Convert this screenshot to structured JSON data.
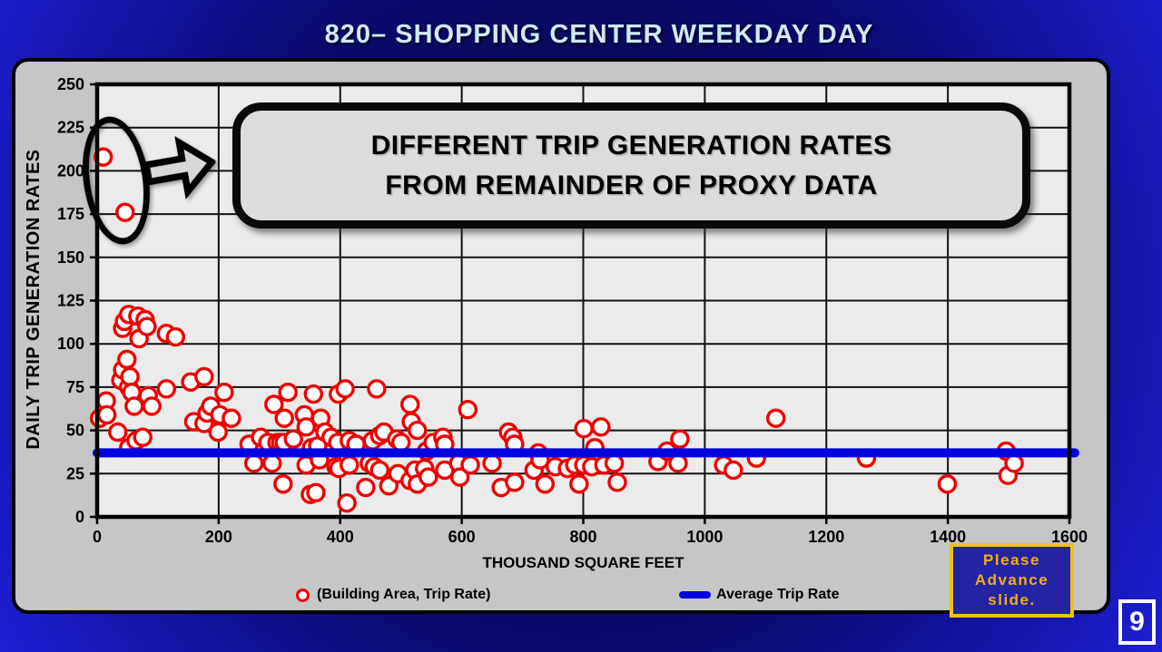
{
  "slide": {
    "title": "820– SHOPPING CENTER WEEKDAY DAY",
    "page_number": "9"
  },
  "callout": {
    "line1": "DIFFERENT TRIP GENERATION RATES",
    "line2": "FROM REMAINDER OF PROXY DATA"
  },
  "advance_box": {
    "line1": "Please",
    "line2": "Advance",
    "line3": "slide."
  },
  "legend": {
    "scatter_label": "(Building Area, Trip Rate)",
    "line_label": "Average Trip Rate"
  },
  "colors": {
    "marker_red": "#ee0000",
    "average_line_blue": "#0000e0",
    "title_text": "#cfeaf8",
    "advance_text": "#f2ae14",
    "advance_border": "#eec11c",
    "advance_bg": "#2323a3",
    "slide_bg_center": "#06063a",
    "slide_bg_edge": "#1e1ed6",
    "plot_background": "#ebebeb",
    "panel_background": "#c6c6c6"
  },
  "chart_data": {
    "type": "scatter",
    "title": "820– SHOPPING CENTER WEEKDAY DAY",
    "xlabel": "THOUSAND SQUARE FEET",
    "ylabel": "DAILY TRIP GENERATION RATES",
    "xlim": [
      0,
      1600
    ],
    "ylim": [
      0,
      250
    ],
    "x_ticks": [
      0,
      200,
      400,
      600,
      800,
      1000,
      1200,
      1400,
      1600
    ],
    "y_ticks": [
      0,
      25,
      50,
      75,
      100,
      125,
      150,
      175,
      200,
      225,
      250
    ],
    "grid": true,
    "legend_position": "bottom",
    "average_trip_rate": 37,
    "circled_outliers": [
      [
        10,
        208
      ],
      [
        46,
        176
      ]
    ],
    "annotation": "DIFFERENT TRIP GENERATION RATES FROM REMAINDER OF PROXY DATA",
    "series": [
      {
        "name": "(Building Area, Trip Rate)",
        "type": "scatter",
        "points": [
          [
            10,
            208
          ],
          [
            46,
            176
          ],
          [
            4,
            57
          ],
          [
            15,
            67
          ],
          [
            16,
            59
          ],
          [
            34,
            49
          ],
          [
            39,
            79
          ],
          [
            42,
            109
          ],
          [
            42,
            85
          ],
          [
            45,
            113
          ],
          [
            49,
            91
          ],
          [
            52,
            117
          ],
          [
            52,
            75
          ],
          [
            52,
            40
          ],
          [
            54,
            81
          ],
          [
            57,
            72
          ],
          [
            61,
            64
          ],
          [
            64,
            44
          ],
          [
            67,
            116
          ],
          [
            69,
            103
          ],
          [
            75,
            46
          ],
          [
            79,
            114
          ],
          [
            82,
            110
          ],
          [
            84,
            70
          ],
          [
            90,
            64
          ],
          [
            114,
            106
          ],
          [
            114,
            74
          ],
          [
            129,
            104
          ],
          [
            154,
            78
          ],
          [
            159,
            55
          ],
          [
            176,
            81
          ],
          [
            176,
            54
          ],
          [
            181,
            60
          ],
          [
            187,
            64
          ],
          [
            199,
            49
          ],
          [
            202,
            59
          ],
          [
            209,
            72
          ],
          [
            221,
            57
          ],
          [
            250,
            42
          ],
          [
            258,
            31
          ],
          [
            269,
            46
          ],
          [
            281,
            43
          ],
          [
            288,
            31
          ],
          [
            291,
            65
          ],
          [
            296,
            43
          ],
          [
            302,
            43
          ],
          [
            306,
            19
          ],
          [
            308,
            57
          ],
          [
            308,
            43
          ],
          [
            314,
            72
          ],
          [
            323,
            45
          ],
          [
            341,
            59
          ],
          [
            344,
            52
          ],
          [
            344,
            30
          ],
          [
            351,
            13
          ],
          [
            353,
            40
          ],
          [
            356,
            71
          ],
          [
            360,
            14
          ],
          [
            363,
            41
          ],
          [
            366,
            33
          ],
          [
            368,
            57
          ],
          [
            375,
            49
          ],
          [
            385,
            46
          ],
          [
            393,
            29
          ],
          [
            396,
            43
          ],
          [
            397,
            71
          ],
          [
            398,
            28
          ],
          [
            408,
            74
          ],
          [
            411,
            8
          ],
          [
            415,
            44
          ],
          [
            415,
            30
          ],
          [
            426,
            42
          ],
          [
            442,
            17
          ],
          [
            448,
            31
          ],
          [
            453,
            44
          ],
          [
            456,
            29
          ],
          [
            460,
            74
          ],
          [
            465,
            47
          ],
          [
            465,
            27
          ],
          [
            472,
            49
          ],
          [
            480,
            18
          ],
          [
            493,
            45
          ],
          [
            495,
            25
          ],
          [
            500,
            43
          ],
          [
            515,
            65
          ],
          [
            515,
            21
          ],
          [
            517,
            55
          ],
          [
            523,
            27
          ],
          [
            527,
            50
          ],
          [
            527,
            19
          ],
          [
            539,
            28
          ],
          [
            542,
            38
          ],
          [
            545,
            23
          ],
          [
            553,
            43
          ],
          [
            569,
            46
          ],
          [
            572,
            42
          ],
          [
            572,
            27
          ],
          [
            595,
            31
          ],
          [
            597,
            23
          ],
          [
            610,
            62
          ],
          [
            614,
            30
          ],
          [
            650,
            31
          ],
          [
            665,
            17
          ],
          [
            677,
            49
          ],
          [
            684,
            46
          ],
          [
            687,
            42
          ],
          [
            687,
            20
          ],
          [
            719,
            27
          ],
          [
            726,
            37
          ],
          [
            729,
            33
          ],
          [
            737,
            19
          ],
          [
            754,
            29
          ],
          [
            774,
            28
          ],
          [
            786,
            30
          ],
          [
            793,
            19
          ],
          [
            801,
            51
          ],
          [
            801,
            30
          ],
          [
            814,
            29
          ],
          [
            819,
            40
          ],
          [
            829,
            52
          ],
          [
            834,
            30
          ],
          [
            851,
            31
          ],
          [
            856,
            20
          ],
          [
            923,
            32
          ],
          [
            938,
            38
          ],
          [
            956,
            31
          ],
          [
            959,
            45
          ],
          [
            1031,
            30
          ],
          [
            1047,
            27
          ],
          [
            1085,
            34
          ],
          [
            1117,
            57
          ],
          [
            1266,
            34
          ],
          [
            1399,
            19
          ],
          [
            1496,
            38
          ],
          [
            1499,
            24
          ],
          [
            1509,
            31
          ]
        ]
      },
      {
        "name": "Average Trip Rate",
        "type": "hline",
        "value": 37
      }
    ]
  }
}
